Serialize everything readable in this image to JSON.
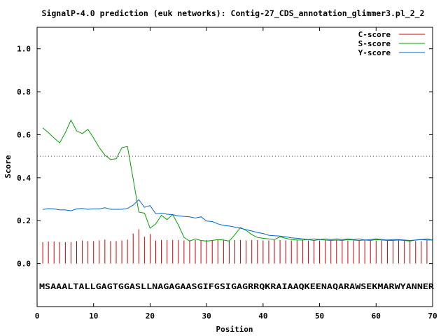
{
  "chart_data": {
    "type": "line",
    "title": "SignalP-4.0 prediction (euk networks): Contig-27_CDS_annotation_glimmer3.pl_2_2",
    "xlabel": "Position",
    "ylabel": "Score",
    "xlim": [
      0,
      70
    ],
    "ylim": [
      -0.2,
      1.1
    ],
    "xticks": [
      0,
      10,
      20,
      30,
      40,
      50,
      60,
      70
    ],
    "xtick_labels": [
      "0",
      "10",
      "20",
      "30",
      "40",
      "50",
      "60",
      "70"
    ],
    "yticks": [
      0.0,
      0.2,
      0.4,
      0.6,
      0.8,
      1.0
    ],
    "ytick_labels": [
      "0.0",
      "0.2",
      "0.4",
      "0.6",
      "0.8",
      "1.0"
    ],
    "threshold": 0.5,
    "sequence": "MSAAALTALLGAGTGGASLLNAGAGAASGIFGSIGAGRRQKRAIAAQKEENAQARAWSEKMARWYANNER",
    "legend_position": "top-right",
    "x": [
      1,
      2,
      3,
      4,
      5,
      6,
      7,
      8,
      9,
      10,
      11,
      12,
      13,
      14,
      15,
      16,
      17,
      18,
      19,
      20,
      21,
      22,
      23,
      24,
      25,
      26,
      27,
      28,
      29,
      30,
      31,
      32,
      33,
      34,
      35,
      36,
      37,
      38,
      39,
      40,
      41,
      42,
      43,
      44,
      45,
      46,
      47,
      48,
      49,
      50,
      51,
      52,
      53,
      54,
      55,
      56,
      57,
      58,
      59,
      60,
      61,
      62,
      63,
      64,
      65,
      66,
      67,
      68,
      69,
      70
    ],
    "series": [
      {
        "name": "C-score",
        "color": "#cc0000",
        "style": "impulses",
        "values": [
          0.1,
          0.103,
          0.103,
          0.1,
          0.1,
          0.1,
          0.105,
          0.108,
          0.105,
          0.105,
          0.108,
          0.112,
          0.105,
          0.105,
          0.108,
          0.112,
          0.14,
          0.16,
          0.125,
          0.138,
          0.108,
          0.11,
          0.11,
          0.11,
          0.11,
          0.108,
          0.108,
          0.11,
          0.108,
          0.11,
          0.11,
          0.112,
          0.108,
          0.108,
          0.11,
          0.11,
          0.108,
          0.11,
          0.11,
          0.108,
          0.108,
          0.11,
          0.11,
          0.108,
          0.108,
          0.108,
          0.11,
          0.108,
          0.108,
          0.108,
          0.108,
          0.108,
          0.11,
          0.108,
          0.108,
          0.108,
          0.108,
          0.108,
          0.108,
          0.108,
          0.108,
          0.108,
          0.108,
          0.108,
          0.108,
          0.108,
          0.105,
          0.105,
          0.108,
          0.108
        ]
      },
      {
        "name": "S-score",
        "color": "#00a000",
        "style": "line",
        "values": [
          0.632,
          0.61,
          0.585,
          0.562,
          0.61,
          0.668,
          0.618,
          0.605,
          0.625,
          0.585,
          0.54,
          0.505,
          0.485,
          0.488,
          0.54,
          0.545,
          0.395,
          0.24,
          0.235,
          0.165,
          0.185,
          0.225,
          0.205,
          0.228,
          0.18,
          0.122,
          0.105,
          0.115,
          0.108,
          0.105,
          0.108,
          0.112,
          0.11,
          0.105,
          0.135,
          0.168,
          0.155,
          0.135,
          0.122,
          0.118,
          0.115,
          0.112,
          0.125,
          0.118,
          0.112,
          0.11,
          0.11,
          0.112,
          0.108,
          0.112,
          0.11,
          0.108,
          0.11,
          0.108,
          0.112,
          0.11,
          0.108,
          0.11,
          0.108,
          0.112,
          0.11,
          0.108,
          0.108,
          0.11,
          0.108,
          0.105,
          0.11,
          0.112,
          0.115,
          0.11
        ]
      },
      {
        "name": "Y-score",
        "color": "#0066cc",
        "style": "line",
        "values": [
          0.252,
          0.256,
          0.255,
          0.25,
          0.25,
          0.246,
          0.255,
          0.257,
          0.253,
          0.255,
          0.255,
          0.26,
          0.253,
          0.253,
          0.253,
          0.257,
          0.272,
          0.298,
          0.262,
          0.27,
          0.232,
          0.235,
          0.23,
          0.228,
          0.222,
          0.22,
          0.218,
          0.212,
          0.218,
          0.198,
          0.196,
          0.185,
          0.178,
          0.175,
          0.17,
          0.165,
          0.158,
          0.152,
          0.145,
          0.14,
          0.132,
          0.13,
          0.128,
          0.125,
          0.12,
          0.118,
          0.115,
          0.112,
          0.115,
          0.112,
          0.115,
          0.112,
          0.115,
          0.112,
          0.115,
          0.112,
          0.115,
          0.11,
          0.112,
          0.115,
          0.112,
          0.11,
          0.112,
          0.112,
          0.11,
          0.108,
          0.11,
          0.112,
          0.11,
          0.11
        ]
      }
    ]
  }
}
